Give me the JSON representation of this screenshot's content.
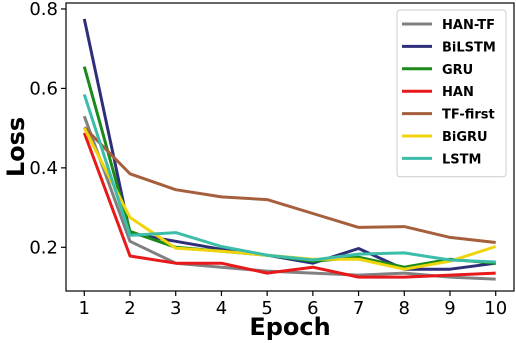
{
  "chart_data": {
    "type": "line",
    "xlabel": "Epoch",
    "ylabel": "Loss",
    "x": [
      1,
      2,
      3,
      4,
      5,
      6,
      7,
      8,
      9,
      10
    ],
    "xlim": [
      0.6,
      10.4
    ],
    "ylim": [
      0.09,
      0.815
    ],
    "yticks": [
      0.2,
      0.4,
      0.6,
      0.8
    ],
    "ytick_labels": [
      "0.2",
      "0.4",
      "0.6",
      "0.8"
    ],
    "xtick_labels": [
      "1",
      "2",
      "3",
      "4",
      "5",
      "6",
      "7",
      "8",
      "9",
      "10"
    ],
    "grid": false,
    "legend_position": "top-right",
    "series": [
      {
        "name": "HAN-TF",
        "color": "#808080",
        "values": [
          0.53,
          0.215,
          0.16,
          0.15,
          0.14,
          0.135,
          0.13,
          0.135,
          0.125,
          0.12
        ]
      },
      {
        "name": "BiLSTM",
        "color": "#2e2e7a",
        "values": [
          0.775,
          0.235,
          0.215,
          0.195,
          0.18,
          0.16,
          0.197,
          0.145,
          0.145,
          0.16
        ]
      },
      {
        "name": "GRU",
        "color": "#1a8a1a",
        "values": [
          0.655,
          0.24,
          0.2,
          0.19,
          0.18,
          0.165,
          0.175,
          0.15,
          0.17,
          0.16
        ]
      },
      {
        "name": "HAN",
        "color": "#e8191a",
        "values": [
          0.488,
          0.178,
          0.16,
          0.16,
          0.135,
          0.15,
          0.125,
          0.125,
          0.13,
          0.135
        ]
      },
      {
        "name": "TF-first",
        "color": "#a65f3c",
        "values": [
          0.502,
          0.385,
          0.345,
          0.327,
          0.32,
          0.285,
          0.25,
          0.252,
          0.225,
          0.212
        ]
      },
      {
        "name": "BiGRU",
        "color": "#f0d50c",
        "values": [
          0.5,
          0.275,
          0.198,
          0.19,
          0.18,
          0.17,
          0.17,
          0.145,
          0.165,
          0.202
        ]
      },
      {
        "name": "LSTM",
        "color": "#3cbdaa",
        "values": [
          0.585,
          0.23,
          0.237,
          0.202,
          0.18,
          0.168,
          0.183,
          0.186,
          0.168,
          0.163
        ]
      }
    ]
  }
}
